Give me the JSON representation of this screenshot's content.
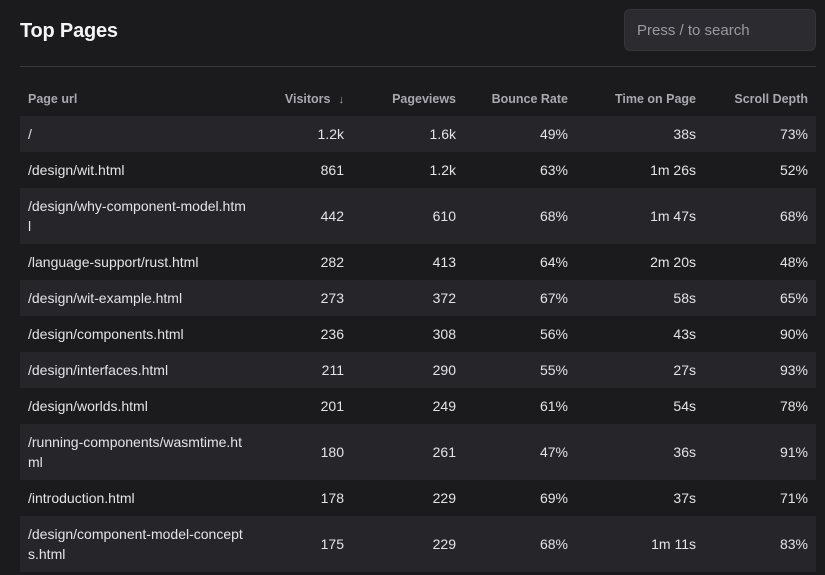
{
  "header": {
    "title": "Top Pages",
    "search_placeholder": "Press / to search"
  },
  "table": {
    "columns": {
      "page_url": "Page url",
      "visitors": "Visitors",
      "visitors_sort_indicator": "↓",
      "pageviews": "Pageviews",
      "bounce_rate": "Bounce Rate",
      "time_on_page": "Time on Page",
      "scroll_depth": "Scroll Depth"
    },
    "rows": [
      {
        "url": "/",
        "visitors": "1.2k",
        "pageviews": "1.6k",
        "bounce_rate": "49%",
        "time_on_page": "38s",
        "scroll_depth": "73%"
      },
      {
        "url": "/design/wit.html",
        "visitors": "861",
        "pageviews": "1.2k",
        "bounce_rate": "63%",
        "time_on_page": "1m 26s",
        "scroll_depth": "52%"
      },
      {
        "url": "/design/why-component-model.html",
        "visitors": "442",
        "pageviews": "610",
        "bounce_rate": "68%",
        "time_on_page": "1m 47s",
        "scroll_depth": "68%"
      },
      {
        "url": "/language-support/rust.html",
        "visitors": "282",
        "pageviews": "413",
        "bounce_rate": "64%",
        "time_on_page": "2m 20s",
        "scroll_depth": "48%"
      },
      {
        "url": "/design/wit-example.html",
        "visitors": "273",
        "pageviews": "372",
        "bounce_rate": "67%",
        "time_on_page": "58s",
        "scroll_depth": "65%"
      },
      {
        "url": "/design/components.html",
        "visitors": "236",
        "pageviews": "308",
        "bounce_rate": "56%",
        "time_on_page": "43s",
        "scroll_depth": "90%"
      },
      {
        "url": "/design/interfaces.html",
        "visitors": "211",
        "pageviews": "290",
        "bounce_rate": "55%",
        "time_on_page": "27s",
        "scroll_depth": "93%"
      },
      {
        "url": "/design/worlds.html",
        "visitors": "201",
        "pageviews": "249",
        "bounce_rate": "61%",
        "time_on_page": "54s",
        "scroll_depth": "78%"
      },
      {
        "url": "/running-components/wasmtime.html",
        "visitors": "180",
        "pageviews": "261",
        "bounce_rate": "47%",
        "time_on_page": "36s",
        "scroll_depth": "91%"
      },
      {
        "url": "/introduction.html",
        "visitors": "178",
        "pageviews": "229",
        "bounce_rate": "69%",
        "time_on_page": "37s",
        "scroll_depth": "71%"
      },
      {
        "url": "/design/component-model-concepts.html",
        "visitors": "175",
        "pageviews": "229",
        "bounce_rate": "68%",
        "time_on_page": "1m 11s",
        "scroll_depth": "83%"
      }
    ]
  }
}
